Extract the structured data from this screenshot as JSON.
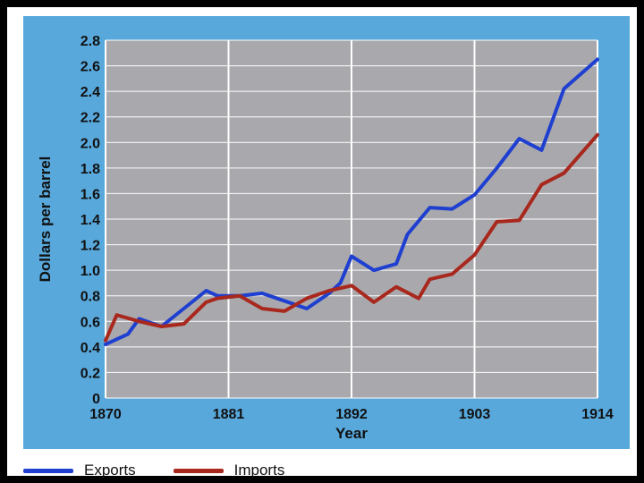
{
  "chart_data": {
    "type": "line",
    "xlabel": "Year",
    "ylabel": "Dollars per barrel",
    "xlim": [
      1870,
      1914
    ],
    "ylim": [
      0,
      2.8
    ],
    "xticks": [
      1870,
      1881,
      1892,
      1903,
      1914
    ],
    "yticks": [
      0,
      0.2,
      0.4,
      0.6,
      0.8,
      1.0,
      1.2,
      1.4,
      1.6,
      1.8,
      2.0,
      2.2,
      2.4,
      2.6,
      2.8
    ],
    "grid": true,
    "legend_position": "bottom",
    "series": [
      {
        "name": "Exports",
        "color": "#1f3fd0",
        "x": [
          1870,
          1872,
          1873,
          1875,
          1877,
          1879,
          1880,
          1882,
          1884,
          1886,
          1888,
          1890,
          1891,
          1892,
          1894,
          1896,
          1897,
          1899,
          1901,
          1903,
          1905,
          1907,
          1909,
          1911,
          1914
        ],
        "y": [
          0.42,
          0.5,
          0.62,
          0.56,
          0.7,
          0.84,
          0.8,
          0.8,
          0.82,
          0.76,
          0.7,
          0.82,
          0.9,
          1.11,
          1.0,
          1.05,
          1.28,
          1.49,
          1.48,
          1.59,
          1.8,
          2.03,
          1.94,
          2.42,
          2.65
        ]
      },
      {
        "name": "Imports",
        "color": "#a8281e",
        "x": [
          1870,
          1871,
          1873,
          1875,
          1877,
          1879,
          1880,
          1882,
          1884,
          1886,
          1888,
          1890,
          1891,
          1892,
          1894,
          1896,
          1898,
          1899,
          1901,
          1903,
          1905,
          1907,
          1909,
          1911,
          1914
        ],
        "y": [
          0.45,
          0.65,
          0.6,
          0.56,
          0.58,
          0.75,
          0.78,
          0.8,
          0.7,
          0.68,
          0.78,
          0.84,
          0.86,
          0.88,
          0.75,
          0.87,
          0.78,
          0.93,
          0.97,
          1.12,
          1.38,
          1.39,
          1.67,
          1.76,
          2.06
        ]
      }
    ]
  }
}
